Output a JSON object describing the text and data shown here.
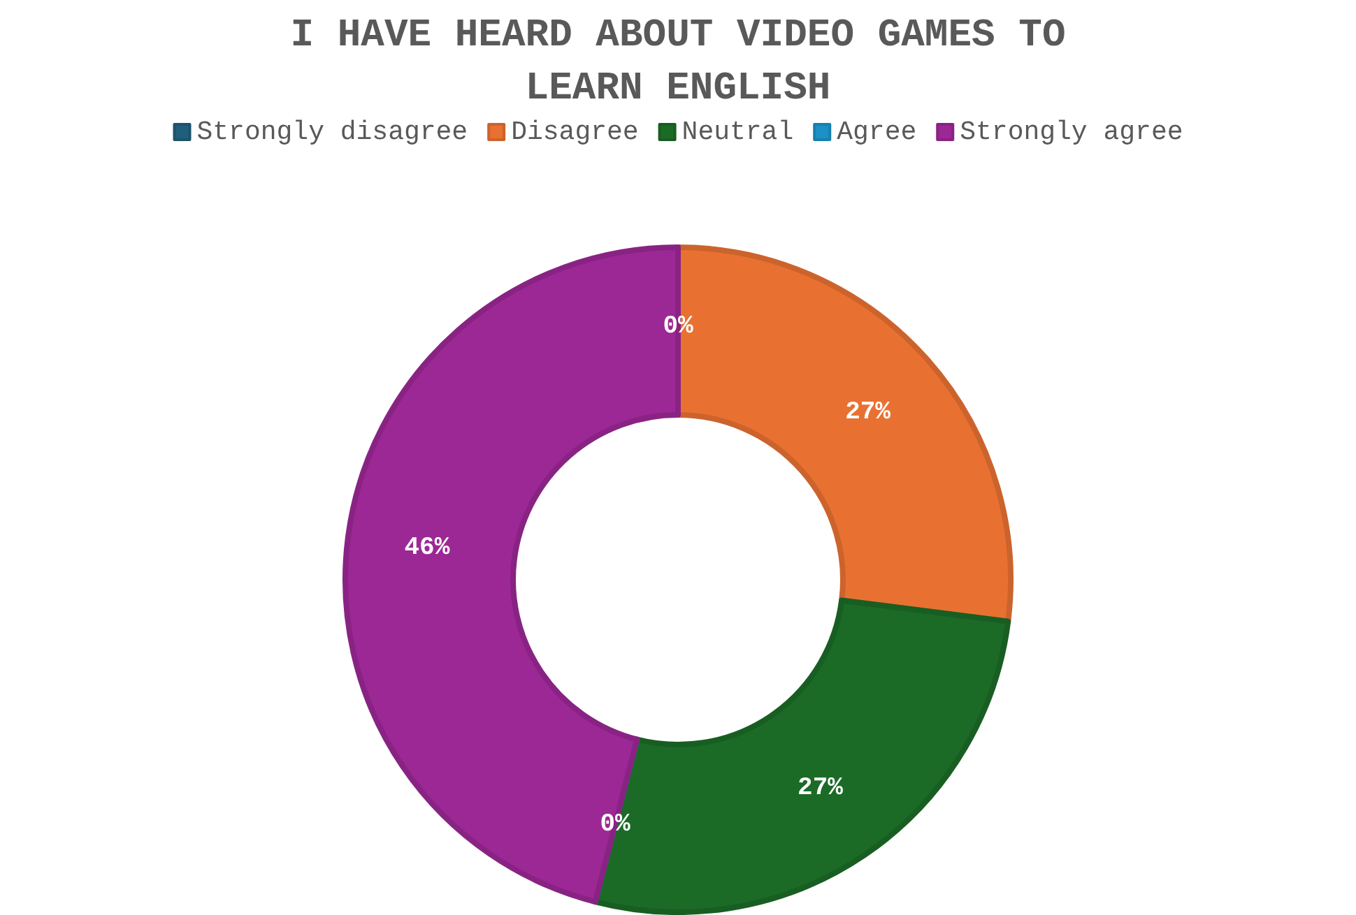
{
  "chart_data": {
    "type": "donut",
    "title": "I HAVE HEARD ABOUT VIDEO GAMES TO\nLEARN ENGLISH",
    "categories": [
      "Strongly disagree",
      "Disagree",
      "Neutral",
      "Agree",
      "Strongly agree"
    ],
    "values": [
      0,
      27,
      27,
      0,
      46
    ],
    "colors": [
      "#1f5f7b",
      "#e87132",
      "#1b6b27",
      "#1b91c6",
      "#9c2895"
    ],
    "value_labels": [
      "0%",
      "27%",
      "27%",
      "0%",
      "46%"
    ],
    "legend": "top"
  }
}
